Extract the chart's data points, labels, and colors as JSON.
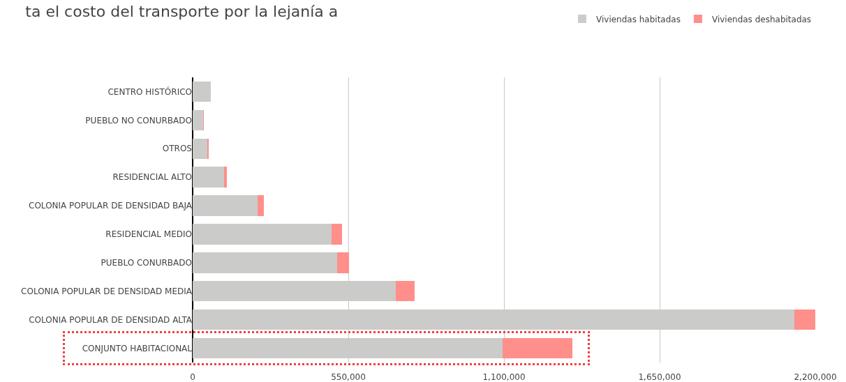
{
  "chart_data": {
    "type": "bar",
    "orientation": "horizontal",
    "stacked": true,
    "title": "ta el costo del transporte por la lejanía a",
    "categories": [
      "CENTRO HISTÓRICO",
      "PUEBLO NO CONURBADO",
      "OTROS",
      "RESIDENCIAL ALTO",
      "COLONIA POPULAR DE DENSIDAD BAJA",
      "RESIDENCIAL MEDIO",
      "PUEBLO CONURBADO",
      "COLONIA POPULAR DE DENSIDAD MEDIA",
      "COLONIA POPULAR DE DENSIDAD ALTA",
      "CONJUNTO HABITACIONAL"
    ],
    "series": [
      {
        "name": "Viviendas habitadas",
        "color": "#cbccc9",
        "values": [
          64000,
          37000,
          54000,
          111000,
          229000,
          491000,
          511000,
          718000,
          2126000,
          1095000
        ]
      },
      {
        "name": "Viviendas deshabitadas",
        "color": "#ff8f8a",
        "values": [
          0,
          2000,
          3000,
          10000,
          22000,
          37000,
          42000,
          67000,
          74000,
          247000
        ]
      }
    ],
    "xlim": [
      0,
      2200000
    ],
    "xticks": [
      0,
      {
        "value": 550000,
        "label": "550,000"
      },
      {
        "value": 1100000,
        "label": "1,100,000"
      },
      {
        "value": 1650000,
        "label": "1,650,000"
      },
      {
        "value": 2200000,
        "label": "2,200,000"
      }
    ],
    "grid": "x",
    "legend": "top right"
  }
}
